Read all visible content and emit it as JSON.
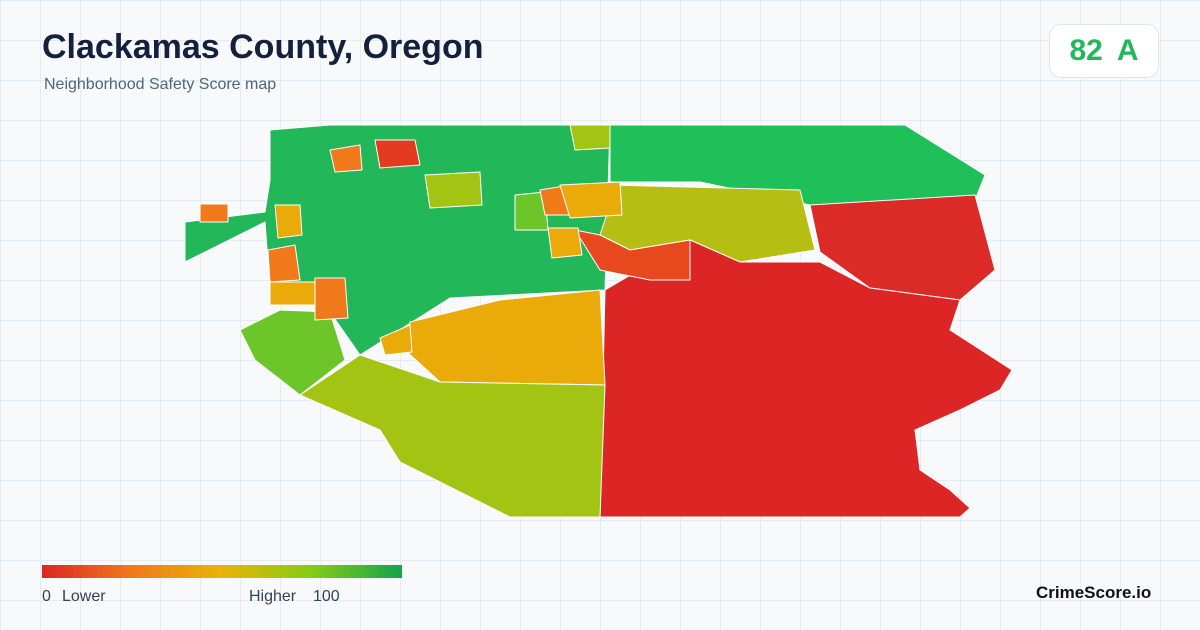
{
  "header": {
    "title": "Clackamas County, Oregon",
    "subtitle": "Neighborhood Safety Score map"
  },
  "score": {
    "value": 82,
    "grade": "A"
  },
  "legend": {
    "min": 0,
    "min_label": "Lower",
    "max_label": "Higher",
    "max": 100
  },
  "brand": "CrimeScore.io"
}
